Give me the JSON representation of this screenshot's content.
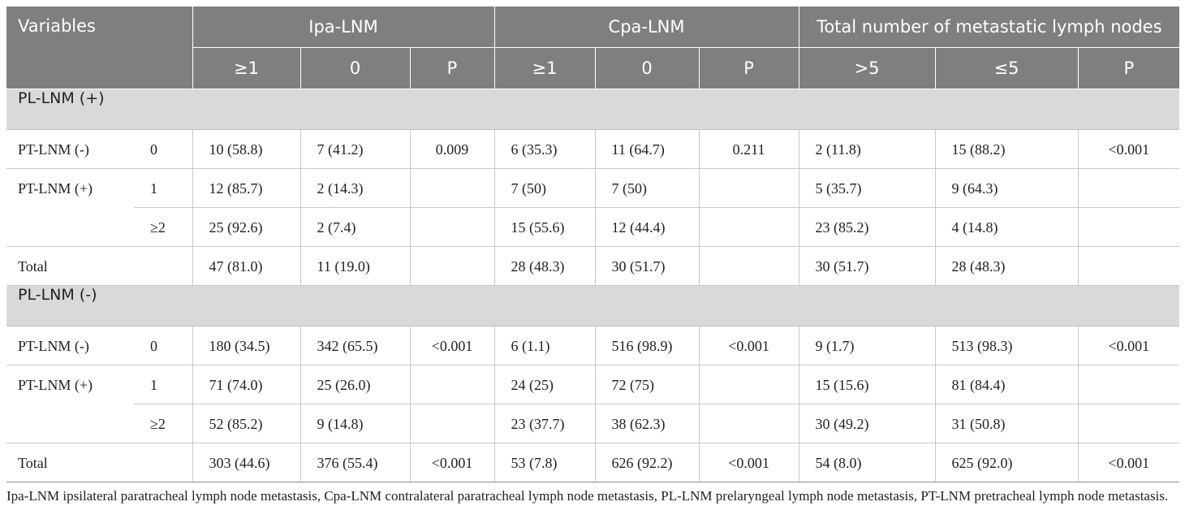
{
  "header": {
    "variables": "Variables",
    "groups": [
      "Ipa-LNM",
      "Cpa-LNM",
      "Total number of metastatic lymph nodes"
    ],
    "subheaders": [
      "≥1",
      "0",
      "P",
      "≥1",
      "0",
      "P",
      ">5",
      "≤5",
      "P"
    ]
  },
  "sections": [
    {
      "title": "PL-LNM (+)",
      "rows": [
        {
          "label": "PT-LNM (-)",
          "sub": "0",
          "cells": [
            "10 (58.8)",
            "7 (41.2)",
            "0.009",
            "6 (35.3)",
            "11 (64.7)",
            "0.211",
            "2 (11.8)",
            "15 (88.2)",
            "<0.001"
          ]
        },
        {
          "label": "PT-LNM (+)",
          "sub": "1",
          "cells": [
            "12 (85.7)",
            "2 (14.3)",
            "",
            "7 (50)",
            "7 (50)",
            "",
            "5 (35.7)",
            "9 (64.3)",
            ""
          ]
        },
        {
          "label": "",
          "sub": "≥2",
          "cells": [
            "25 (92.6)",
            "2 (7.4)",
            "",
            "15 (55.6)",
            "12 (44.4)",
            "",
            "23 (85.2)",
            "4 (14.8)",
            ""
          ]
        },
        {
          "label": "Total",
          "sub": "",
          "cells": [
            "47 (81.0)",
            "11 (19.0)",
            "",
            "28 (48.3)",
            "30 (51.7)",
            "",
            "30 (51.7)",
            "28 (48.3)",
            ""
          ]
        }
      ]
    },
    {
      "title": "PL-LNM (-)",
      "rows": [
        {
          "label": "PT-LNM (-)",
          "sub": "0",
          "cells": [
            "180 (34.5)",
            "342 (65.5)",
            "<0.001",
            "6 (1.1)",
            "516 (98.9)",
            "<0.001",
            "9 (1.7)",
            "513 (98.3)",
            "<0.001"
          ]
        },
        {
          "label": "PT-LNM (+)",
          "sub": "1",
          "cells": [
            "71 (74.0)",
            "25 (26.0)",
            "",
            "24 (25)",
            "72 (75)",
            "",
            "15 (15.6)",
            "81 (84.4)",
            ""
          ]
        },
        {
          "label": "",
          "sub": "≥2",
          "cells": [
            "52 (85.2)",
            "9 (14.8)",
            "",
            "23 (37.7)",
            "38 (62.3)",
            "",
            "30 (49.2)",
            "31 (50.8)",
            ""
          ]
        },
        {
          "label": "Total",
          "sub": "",
          "cells": [
            "303 (44.6)",
            "376 (55.4)",
            "<0.001",
            "53 (7.8)",
            "626 (92.2)",
            "<0.001",
            "54 (8.0)",
            "625 (92.0)",
            "<0.001"
          ]
        }
      ]
    }
  ],
  "footnote": "Ipa-LNM ipsilateral paratracheal lymph node metastasis, Cpa-LNM contralateral paratracheal lymph node metastasis, PL-LNM prelaryngeal lymph node metastasis, PT-LNM pretracheal lymph node metastasis."
}
